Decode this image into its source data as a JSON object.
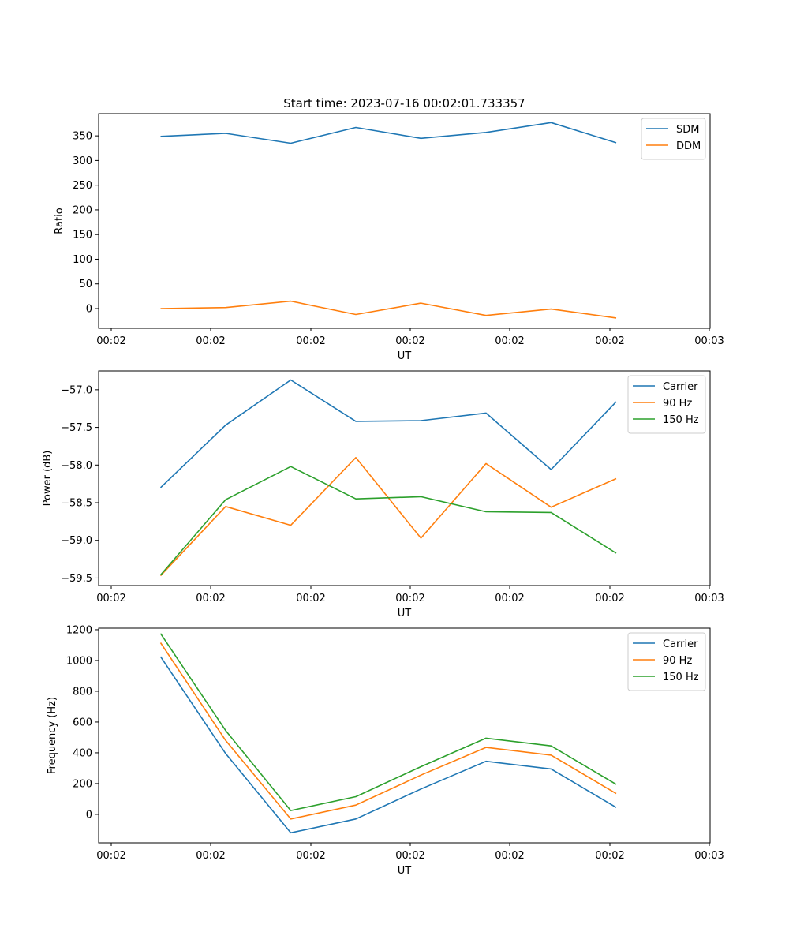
{
  "figure_title": "Start time: 2023-07-16 00:02:01.733357",
  "chart_data": [
    {
      "type": "line",
      "ylabel": "Ratio",
      "xlabel": "UT",
      "x_tick_labels": [
        "00:02",
        "00:02",
        "00:02",
        "00:02",
        "00:02",
        "00:02",
        "00:03"
      ],
      "y_ticks": [
        0,
        50,
        100,
        150,
        200,
        250,
        300,
        350
      ],
      "y_tick_labels": [
        "0",
        "50",
        "100",
        "150",
        "200",
        "250",
        "300",
        "350"
      ],
      "ylim": [
        -40,
        395
      ],
      "legend_position": "top-right",
      "series": [
        {
          "name": "SDM",
          "color": "#1f77b4",
          "values": [
            349,
            355,
            335,
            367,
            345,
            357,
            377,
            336
          ]
        },
        {
          "name": "DDM",
          "color": "#ff7f0e",
          "values": [
            0,
            2,
            15,
            -12,
            11,
            -14,
            -1,
            -19
          ]
        }
      ]
    },
    {
      "type": "line",
      "ylabel": "Power (dB)",
      "xlabel": "UT",
      "x_tick_labels": [
        "00:02",
        "00:02",
        "00:02",
        "00:02",
        "00:02",
        "00:02",
        "00:03"
      ],
      "y_ticks": [
        -59.5,
        -59.0,
        -58.5,
        -58.0,
        -57.5,
        -57.0
      ],
      "y_tick_labels": [
        "−59.5",
        "−59.0",
        "−58.5",
        "−58.0",
        "−57.5",
        "−57.0"
      ],
      "ylim": [
        -59.6,
        -56.75
      ],
      "legend_position": "top-right",
      "series": [
        {
          "name": "Carrier",
          "color": "#1f77b4",
          "values": [
            -58.3,
            -57.47,
            -56.87,
            -57.42,
            -57.41,
            -57.31,
            -58.06,
            -57.16
          ]
        },
        {
          "name": "90 Hz",
          "color": "#ff7f0e",
          "values": [
            -59.47,
            -58.55,
            -58.8,
            -57.9,
            -58.97,
            -57.98,
            -58.56,
            -58.18
          ]
        },
        {
          "name": "150 Hz",
          "color": "#2ca02c",
          "values": [
            -59.46,
            -58.46,
            -58.02,
            -58.45,
            -58.42,
            -58.62,
            -58.63,
            -59.17
          ]
        }
      ]
    },
    {
      "type": "line",
      "ylabel": "Frequency (Hz)",
      "xlabel": "UT",
      "x_tick_labels": [
        "00:02",
        "00:02",
        "00:02",
        "00:02",
        "00:02",
        "00:02",
        "00:03"
      ],
      "y_ticks": [
        0,
        200,
        400,
        600,
        800,
        1000,
        1200
      ],
      "y_tick_labels": [
        "0",
        "200",
        "400",
        "600",
        "800",
        "1000",
        "1200"
      ],
      "ylim": [
        -185,
        1210
      ],
      "legend_position": "top-right",
      "series": [
        {
          "name": "Carrier",
          "color": "#1f77b4",
          "values": [
            1025,
            395,
            -120,
            -30,
            165,
            345,
            295,
            45
          ]
        },
        {
          "name": "90 Hz",
          "color": "#ff7f0e",
          "values": [
            1115,
            480,
            -30,
            60,
            255,
            435,
            385,
            135
          ]
        },
        {
          "name": "150 Hz",
          "color": "#2ca02c",
          "values": [
            1175,
            545,
            25,
            115,
            310,
            495,
            445,
            195
          ]
        }
      ]
    }
  ]
}
